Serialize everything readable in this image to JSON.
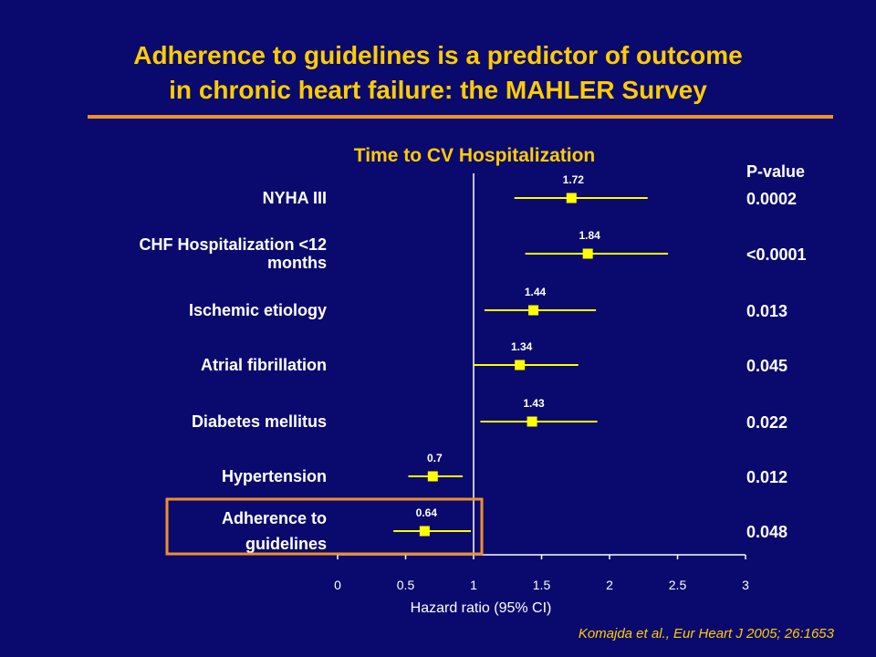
{
  "slide": {
    "title_line1": "Adherence to guidelines is a predictor of outcome",
    "title_line2": "in chronic heart failure: the MAHLER Survey",
    "citation": "Komajda et al., Eur Heart J 2005; 26:1653"
  },
  "colors": {
    "background": "#0a0a6e",
    "title": "#ffcc00",
    "rule": "#f0902a",
    "highlight_box": "#f0902a",
    "marker": "#ffff00",
    "text": "#ffffff"
  },
  "chart_data": {
    "type": "forest",
    "title": "Time to CV Hospitalization",
    "xlabel": "Hazard ratio (95% CI)",
    "xlim": [
      0,
      3
    ],
    "xticks": [
      0,
      0.5,
      1,
      1.5,
      2,
      2.5,
      3
    ],
    "xtick_labels": [
      "0",
      "0.5",
      "1",
      "1.5",
      "2",
      "2.5",
      "3"
    ],
    "reference_line": 1,
    "pvalue_header": "P-value",
    "highlighted_row": "Adherence to guidelines",
    "rows": [
      {
        "label_lines": [
          "NYHA III"
        ],
        "label": "NYHA III",
        "hr": 1.72,
        "hr_label": "1.72",
        "ci": [
          1.3,
          2.28
        ],
        "p": "0.0002"
      },
      {
        "label_lines": [
          "CHF Hospitalization <12",
          "months"
        ],
        "label": "CHF Hospitalization <12 months",
        "hr": 1.84,
        "hr_label": "1.84",
        "ci": [
          1.38,
          2.43
        ],
        "p": "<0.0001"
      },
      {
        "label_lines": [
          "Ischemic etiology"
        ],
        "label": "Ischemic etiology",
        "hr": 1.44,
        "hr_label": "1.44",
        "ci": [
          1.08,
          1.9
        ],
        "p": "0.013"
      },
      {
        "label_lines": [
          "Atrial fibrillation"
        ],
        "label": "Atrial fibrillation",
        "hr": 1.34,
        "hr_label": "1.34",
        "ci": [
          1.0,
          1.77
        ],
        "p": "0.045"
      },
      {
        "label_lines": [
          "Diabetes mellitus"
        ],
        "label": "Diabetes mellitus",
        "hr": 1.43,
        "hr_label": "1.43",
        "ci": [
          1.05,
          1.91
        ],
        "p": "0.022"
      },
      {
        "label_lines": [
          "Hypertension"
        ],
        "label": "Hypertension",
        "hr": 0.7,
        "hr_label": "0.7",
        "ci": [
          0.52,
          0.92
        ],
        "p": "0.012"
      },
      {
        "label_lines": [
          "Adherence to",
          "guidelines"
        ],
        "label": "Adherence to guidelines",
        "hr": 0.64,
        "hr_label": "0.64",
        "ci": [
          0.41,
          0.98
        ],
        "p": "0.048"
      }
    ]
  }
}
